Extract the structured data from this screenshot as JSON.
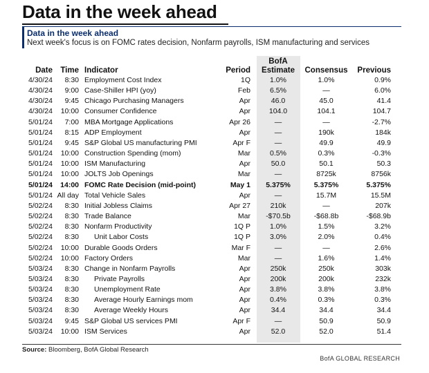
{
  "page_title": "Data in the week ahead",
  "panel": {
    "heading": "Data in the week ahead",
    "subheading": "Next week's focus is on FOMC rates decision, Nonfarm payrolls, ISM manufacturing and services"
  },
  "table": {
    "headers": {
      "date": "Date",
      "time": "Time",
      "indicator": "Indicator",
      "period": "Period",
      "estimate_line1": "BofA",
      "estimate_line2": "Estimate",
      "consensus": "Consensus",
      "previous": "Previous"
    },
    "rows": [
      {
        "date": "4/30/24",
        "time": "8:30",
        "indicator": "Employment Cost Index",
        "period": "1Q",
        "estimate": "1.0%",
        "consensus": "1.0%",
        "previous": "0.9%"
      },
      {
        "date": "4/30/24",
        "time": "9:00",
        "indicator": "Case-Shiller HPI (yoy)",
        "period": "Feb",
        "estimate": "6.5%",
        "consensus": "—",
        "previous": "6.0%"
      },
      {
        "date": "4/30/24",
        "time": "9:45",
        "indicator": "Chicago Purchasing Managers",
        "period": "Apr",
        "estimate": "46.0",
        "consensus": "45.0",
        "previous": "41.4"
      },
      {
        "date": "4/30/24",
        "time": "10:00",
        "indicator": "Consumer Confidence",
        "period": "Apr",
        "estimate": "104.0",
        "consensus": "104.1",
        "previous": "104.7"
      },
      {
        "date": "5/01/24",
        "time": "7:00",
        "indicator": "MBA Mortgage Applications",
        "period": "Apr 26",
        "estimate": "—",
        "consensus": "—",
        "previous": "-2.7%"
      },
      {
        "date": "5/01/24",
        "time": "8:15",
        "indicator": "ADP Employment",
        "period": "Apr",
        "estimate": "—",
        "consensus": "190k",
        "previous": "184k"
      },
      {
        "date": "5/01/24",
        "time": "9:45",
        "indicator": "S&P Global US manufacturing PMI",
        "period": "Apr F",
        "estimate": "—",
        "consensus": "49.9",
        "previous": "49.9"
      },
      {
        "date": "5/01/24",
        "time": "10:00",
        "indicator": "Construction Spending (mom)",
        "period": "Mar",
        "estimate": "0.5%",
        "consensus": "0.3%",
        "previous": "-0.3%"
      },
      {
        "date": "5/01/24",
        "time": "10:00",
        "indicator": "ISM Manufacturing",
        "period": "Apr",
        "estimate": "50.0",
        "consensus": "50.1",
        "previous": "50.3"
      },
      {
        "date": "5/01/24",
        "time": "10:00",
        "indicator": "JOLTS Job Openings",
        "period": "Mar",
        "estimate": "—",
        "consensus": "8725k",
        "previous": "8756k"
      },
      {
        "date": "5/01/24",
        "time": "14:00",
        "indicator": "FOMC Rate Decision (mid-point)",
        "period": "May 1",
        "estimate": "5.375%",
        "consensus": "5.375%",
        "previous": "5.375%",
        "bold": true
      },
      {
        "date": "5/01/24",
        "time": "All day",
        "indicator": "Total Vehicle Sales",
        "period": "Apr",
        "estimate": "—",
        "consensus": "15.7M",
        "previous": "15.5M"
      },
      {
        "date": "5/02/24",
        "time": "8:30",
        "indicator": "Initial Jobless Claims",
        "period": "Apr 27",
        "estimate": "210k",
        "consensus": "—",
        "previous": "207k"
      },
      {
        "date": "5/02/24",
        "time": "8:30",
        "indicator": "Trade Balance",
        "period": "Mar",
        "estimate": "-$70.5b",
        "consensus": "-$68.8b",
        "previous": "-$68.9b"
      },
      {
        "date": "5/02/24",
        "time": "8:30",
        "indicator": "Nonfarm Productivity",
        "period": "1Q P",
        "estimate": "1.0%",
        "consensus": "1.5%",
        "previous": "3.2%"
      },
      {
        "date": "5/02/24",
        "time": "8:30",
        "indicator": "Unit Labor Costs",
        "period": "1Q P",
        "estimate": "3.0%",
        "consensus": "2.0%",
        "previous": "0.4%",
        "indent": true
      },
      {
        "date": "5/02/24",
        "time": "10:00",
        "indicator": "Durable Goods Orders",
        "period": "Mar F",
        "estimate": "—",
        "consensus": "—",
        "previous": "2.6%"
      },
      {
        "date": "5/02/24",
        "time": "10:00",
        "indicator": "Factory Orders",
        "period": "Mar",
        "estimate": "—",
        "consensus": "1.6%",
        "previous": "1.4%"
      },
      {
        "date": "5/03/24",
        "time": "8:30",
        "indicator": "Change in Nonfarm Payrolls",
        "period": "Apr",
        "estimate": "250k",
        "consensus": "250k",
        "previous": "303k"
      },
      {
        "date": "5/03/24",
        "time": "8:30",
        "indicator": "Private Payrolls",
        "period": "Apr",
        "estimate": "200k",
        "consensus": "200k",
        "previous": "232k",
        "indent": true
      },
      {
        "date": "5/03/24",
        "time": "8:30",
        "indicator": "Unemployment Rate",
        "period": "Apr",
        "estimate": "3.8%",
        "consensus": "3.8%",
        "previous": "3.8%",
        "indent": true
      },
      {
        "date": "5/03/24",
        "time": "8:30",
        "indicator": "Average Hourly Earnings mom",
        "period": "Apr",
        "estimate": "0.4%",
        "consensus": "0.3%",
        "previous": "0.3%",
        "indent": true
      },
      {
        "date": "5/03/24",
        "time": "8:30",
        "indicator": "Average Weekly Hours",
        "period": "Apr",
        "estimate": "34.4",
        "consensus": "34.4",
        "previous": "34.4",
        "indent": true
      },
      {
        "date": "5/03/24",
        "time": "9:45",
        "indicator": "S&P Global US services PMI",
        "period": "Apr F",
        "estimate": "—",
        "consensus": "50.9",
        "previous": "50.9"
      },
      {
        "date": "5/03/24",
        "time": "10:00",
        "indicator": "ISM Services",
        "period": "Apr",
        "estimate": "52.0",
        "consensus": "52.0",
        "previous": "51.4"
      }
    ]
  },
  "footer": {
    "source_label": "Source:",
    "source_text": "Bloomberg, BofA Global Research",
    "brand": "BofA GLOBAL RESEARCH"
  }
}
